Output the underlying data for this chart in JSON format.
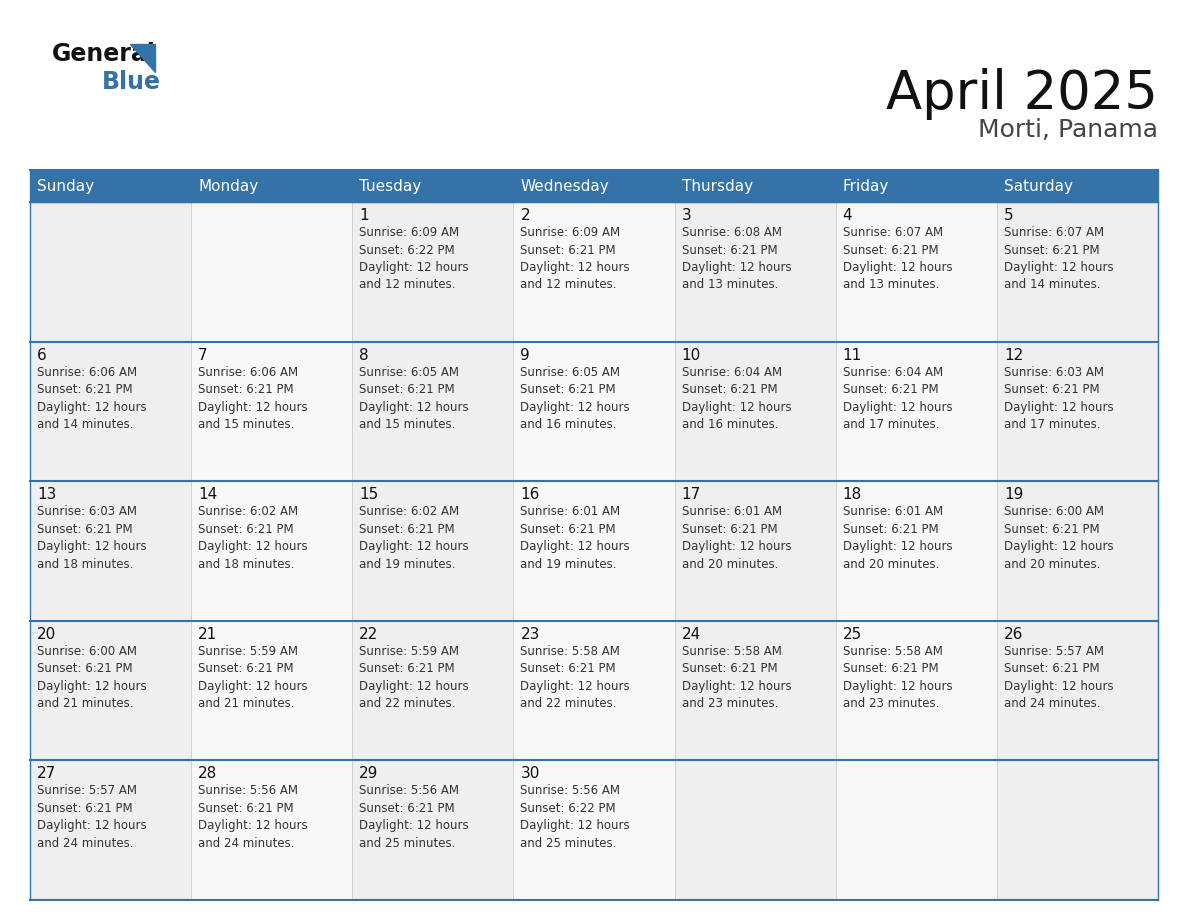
{
  "title": "April 2025",
  "subtitle": "Morti, Panama",
  "header_color": "#3572a8",
  "header_text_color": "#ffffff",
  "day_names": [
    "Sunday",
    "Monday",
    "Tuesday",
    "Wednesday",
    "Thursday",
    "Friday",
    "Saturday"
  ],
  "grid_line_color": "#3572a8",
  "cell_bg_odd": "#efefef",
  "cell_bg_even": "#f8f8f8",
  "day_num_color": "#111111",
  "info_text_color": "#333333",
  "calendar": [
    [
      {
        "day": null,
        "info": ""
      },
      {
        "day": null,
        "info": ""
      },
      {
        "day": 1,
        "info": "Sunrise: 6:09 AM\nSunset: 6:22 PM\nDaylight: 12 hours\nand 12 minutes."
      },
      {
        "day": 2,
        "info": "Sunrise: 6:09 AM\nSunset: 6:21 PM\nDaylight: 12 hours\nand 12 minutes."
      },
      {
        "day": 3,
        "info": "Sunrise: 6:08 AM\nSunset: 6:21 PM\nDaylight: 12 hours\nand 13 minutes."
      },
      {
        "day": 4,
        "info": "Sunrise: 6:07 AM\nSunset: 6:21 PM\nDaylight: 12 hours\nand 13 minutes."
      },
      {
        "day": 5,
        "info": "Sunrise: 6:07 AM\nSunset: 6:21 PM\nDaylight: 12 hours\nand 14 minutes."
      }
    ],
    [
      {
        "day": 6,
        "info": "Sunrise: 6:06 AM\nSunset: 6:21 PM\nDaylight: 12 hours\nand 14 minutes."
      },
      {
        "day": 7,
        "info": "Sunrise: 6:06 AM\nSunset: 6:21 PM\nDaylight: 12 hours\nand 15 minutes."
      },
      {
        "day": 8,
        "info": "Sunrise: 6:05 AM\nSunset: 6:21 PM\nDaylight: 12 hours\nand 15 minutes."
      },
      {
        "day": 9,
        "info": "Sunrise: 6:05 AM\nSunset: 6:21 PM\nDaylight: 12 hours\nand 16 minutes."
      },
      {
        "day": 10,
        "info": "Sunrise: 6:04 AM\nSunset: 6:21 PM\nDaylight: 12 hours\nand 16 minutes."
      },
      {
        "day": 11,
        "info": "Sunrise: 6:04 AM\nSunset: 6:21 PM\nDaylight: 12 hours\nand 17 minutes."
      },
      {
        "day": 12,
        "info": "Sunrise: 6:03 AM\nSunset: 6:21 PM\nDaylight: 12 hours\nand 17 minutes."
      }
    ],
    [
      {
        "day": 13,
        "info": "Sunrise: 6:03 AM\nSunset: 6:21 PM\nDaylight: 12 hours\nand 18 minutes."
      },
      {
        "day": 14,
        "info": "Sunrise: 6:02 AM\nSunset: 6:21 PM\nDaylight: 12 hours\nand 18 minutes."
      },
      {
        "day": 15,
        "info": "Sunrise: 6:02 AM\nSunset: 6:21 PM\nDaylight: 12 hours\nand 19 minutes."
      },
      {
        "day": 16,
        "info": "Sunrise: 6:01 AM\nSunset: 6:21 PM\nDaylight: 12 hours\nand 19 minutes."
      },
      {
        "day": 17,
        "info": "Sunrise: 6:01 AM\nSunset: 6:21 PM\nDaylight: 12 hours\nand 20 minutes."
      },
      {
        "day": 18,
        "info": "Sunrise: 6:01 AM\nSunset: 6:21 PM\nDaylight: 12 hours\nand 20 minutes."
      },
      {
        "day": 19,
        "info": "Sunrise: 6:00 AM\nSunset: 6:21 PM\nDaylight: 12 hours\nand 20 minutes."
      }
    ],
    [
      {
        "day": 20,
        "info": "Sunrise: 6:00 AM\nSunset: 6:21 PM\nDaylight: 12 hours\nand 21 minutes."
      },
      {
        "day": 21,
        "info": "Sunrise: 5:59 AM\nSunset: 6:21 PM\nDaylight: 12 hours\nand 21 minutes."
      },
      {
        "day": 22,
        "info": "Sunrise: 5:59 AM\nSunset: 6:21 PM\nDaylight: 12 hours\nand 22 minutes."
      },
      {
        "day": 23,
        "info": "Sunrise: 5:58 AM\nSunset: 6:21 PM\nDaylight: 12 hours\nand 22 minutes."
      },
      {
        "day": 24,
        "info": "Sunrise: 5:58 AM\nSunset: 6:21 PM\nDaylight: 12 hours\nand 23 minutes."
      },
      {
        "day": 25,
        "info": "Sunrise: 5:58 AM\nSunset: 6:21 PM\nDaylight: 12 hours\nand 23 minutes."
      },
      {
        "day": 26,
        "info": "Sunrise: 5:57 AM\nSunset: 6:21 PM\nDaylight: 12 hours\nand 24 minutes."
      }
    ],
    [
      {
        "day": 27,
        "info": "Sunrise: 5:57 AM\nSunset: 6:21 PM\nDaylight: 12 hours\nand 24 minutes."
      },
      {
        "day": 28,
        "info": "Sunrise: 5:56 AM\nSunset: 6:21 PM\nDaylight: 12 hours\nand 24 minutes."
      },
      {
        "day": 29,
        "info": "Sunrise: 5:56 AM\nSunset: 6:21 PM\nDaylight: 12 hours\nand 25 minutes."
      },
      {
        "day": 30,
        "info": "Sunrise: 5:56 AM\nSunset: 6:22 PM\nDaylight: 12 hours\nand 25 minutes."
      },
      {
        "day": null,
        "info": ""
      },
      {
        "day": null,
        "info": ""
      },
      {
        "day": null,
        "info": ""
      }
    ]
  ],
  "logo_general_color": "#111111",
  "logo_blue_color": "#3572a8",
  "title_fontsize": 38,
  "subtitle_fontsize": 18,
  "header_fontsize": 11,
  "daynum_fontsize": 11,
  "info_fontsize": 8.5
}
